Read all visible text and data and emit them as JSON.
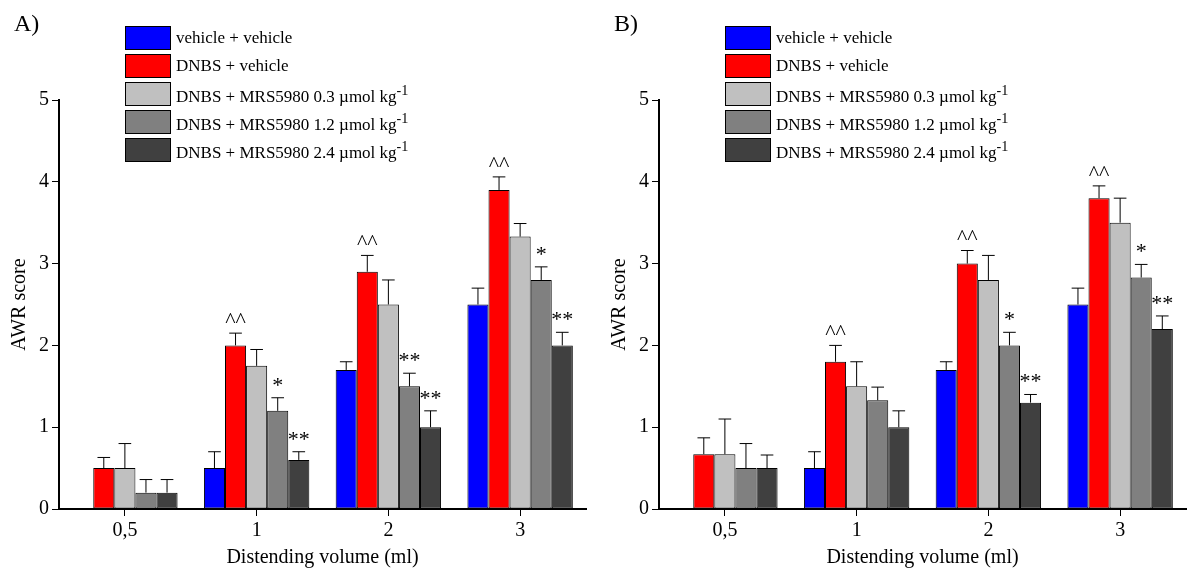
{
  "chart_data": [
    {
      "type": "bar",
      "title": "A)",
      "xlabel": "Distending volume (ml)",
      "ylabel": "AWR score",
      "categories": [
        "0,5",
        "1",
        "2",
        "3"
      ],
      "ylim": [
        0,
        5
      ],
      "yticks": [
        0,
        1,
        2,
        3,
        4,
        5
      ],
      "grid": false,
      "legend": "top",
      "series": [
        {
          "name": "vehicle + vehicle",
          "color": "#0000ff",
          "values": [
            0,
            0.5,
            1.7,
            2.5
          ],
          "errors": [
            null,
            0.2,
            0.1,
            0.2
          ]
        },
        {
          "name": "DNBS + vehicle",
          "color": "#ff0000",
          "values": [
            0.5,
            2.0,
            2.9,
            3.9
          ],
          "errors": [
            0.13,
            0.15,
            0.2,
            0.16
          ],
          "value_labels": [
            null,
            "^^",
            "^^",
            "^^"
          ]
        },
        {
          "name": "DNBS + MRS5980 0.3 µmol kg$^{-1}$",
          "color": "#c0c0c0",
          "values": [
            0.5,
            1.75,
            2.5,
            3.33
          ],
          "errors": [
            0.3,
            0.2,
            0.3,
            0.16
          ]
        },
        {
          "name": "DNBS + MRS5980 1.2 µmol kg$^{-1}$",
          "color": "#808080",
          "values": [
            0.2,
            1.2,
            1.5,
            2.8
          ],
          "errors": [
            0.16,
            0.16,
            0.16,
            0.16
          ],
          "value_labels": [
            null,
            "*",
            "**",
            "*"
          ]
        },
        {
          "name": "DNBS + MRS5980 2.4 µmol kg$^{-1}$",
          "color": "#404040",
          "values": [
            0.2,
            0.6,
            1.0,
            2.0
          ],
          "errors": [
            0.16,
            0.1,
            0.2,
            0.16
          ],
          "value_labels": [
            null,
            "**",
            "**",
            "**"
          ]
        }
      ]
    },
    {
      "type": "bar",
      "title": "B)",
      "xlabel": "Distending volume (ml)",
      "ylabel": "AWR score",
      "categories": [
        "0,5",
        "1",
        "2",
        "3"
      ],
      "ylim": [
        0,
        5
      ],
      "yticks": [
        0,
        1,
        2,
        3,
        4,
        5
      ],
      "grid": false,
      "legend": "top",
      "series": [
        {
          "name": "vehicle + vehicle",
          "color": "#0000ff",
          "values": [
            0,
            0.5,
            1.7,
            2.5
          ],
          "errors": [
            null,
            0.2,
            0.1,
            0.2
          ]
        },
        {
          "name": "DNBS + vehicle",
          "color": "#ff0000",
          "values": [
            0.67,
            1.8,
            3.0,
            3.8
          ],
          "errors": [
            0.2,
            0.2,
            0.16,
            0.15
          ],
          "value_labels": [
            null,
            "^^",
            "^^",
            "^^"
          ]
        },
        {
          "name": "DNBS + MRS5980 0.3 µmol kg$^{-1}$",
          "color": "#c0c0c0",
          "values": [
            0.67,
            1.5,
            2.8,
            3.5
          ],
          "errors": [
            0.43,
            0.3,
            0.3,
            0.3
          ]
        },
        {
          "name": "DNBS + MRS5980 1.2 µmol kg$^{-1}$",
          "color": "#808080",
          "values": [
            0.5,
            1.33,
            2.0,
            2.83
          ],
          "errors": [
            0.3,
            0.16,
            0.16,
            0.16
          ],
          "value_labels": [
            null,
            null,
            "*",
            "*"
          ]
        },
        {
          "name": "DNBS + MRS5980 2.4 µmol kg$^{-1}$",
          "color": "#404040",
          "values": [
            0.5,
            1.0,
            1.3,
            2.2
          ],
          "errors": [
            0.16,
            0.2,
            0.1,
            0.16
          ],
          "value_labels": [
            null,
            null,
            "**",
            "**"
          ]
        }
      ]
    }
  ]
}
